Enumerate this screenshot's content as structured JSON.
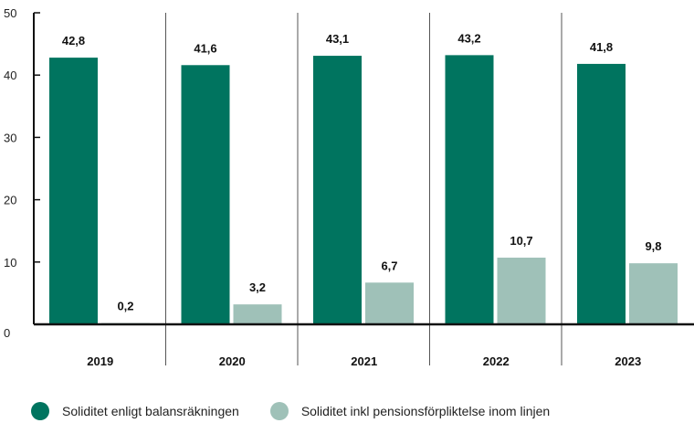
{
  "chart_data": {
    "type": "bar",
    "categories": [
      "2019",
      "2020",
      "2021",
      "2022",
      "2023"
    ],
    "series": [
      {
        "name": "Soliditet enligt balansräkningen",
        "values": [
          42.8,
          41.6,
          43.1,
          43.2,
          41.8
        ],
        "labels": [
          "42,8",
          "41,6",
          "43,1",
          "43,2",
          "41,8"
        ],
        "color": "#00745f"
      },
      {
        "name": "Soliditet inkl pensionsförpliktelse inom linjen",
        "values": [
          0.2,
          3.2,
          6.7,
          10.7,
          9.8
        ],
        "labels": [
          "0,2",
          "3,2",
          "6,7",
          "10,7",
          "9,8"
        ],
        "color": "#9fc1b8"
      }
    ],
    "title": "",
    "xlabel": "",
    "ylabel": "",
    "ylim": [
      0,
      50
    ],
    "yticks": [
      0,
      10,
      20,
      30,
      40,
      50
    ],
    "grid": false,
    "legend_position": "bottom-left"
  }
}
